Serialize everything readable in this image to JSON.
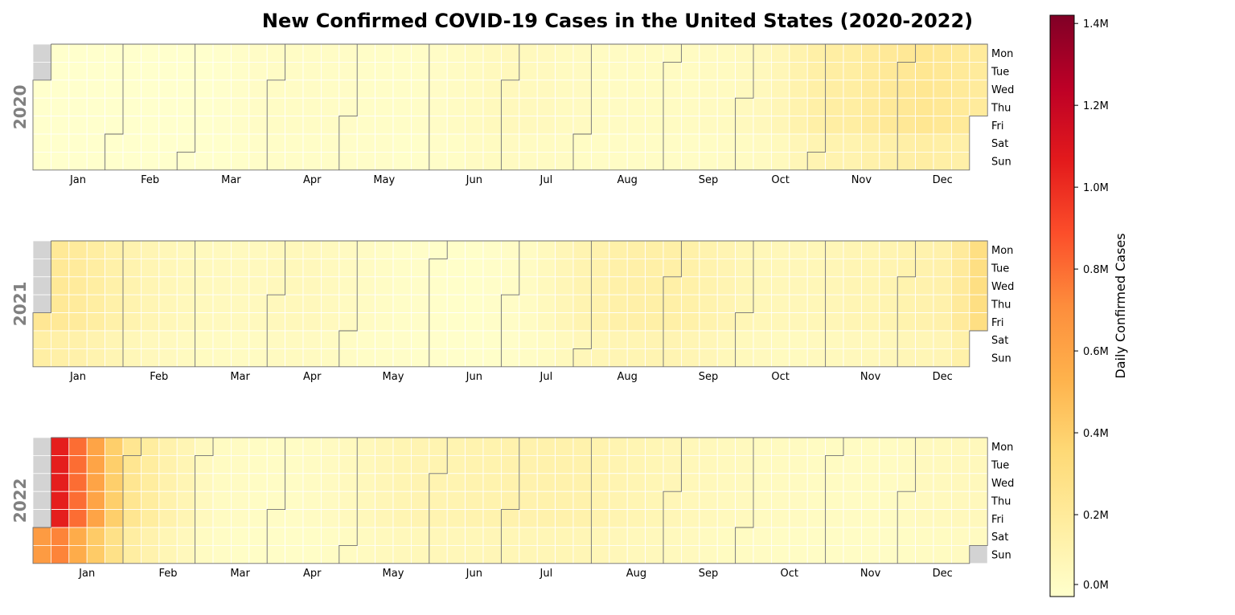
{
  "chart_data": {
    "type": "heatmap",
    "title": "New Confirmed COVID-19 Cases in the United States (2020-2022)",
    "years": [
      "2020",
      "2021",
      "2022"
    ],
    "weekday_labels": [
      "Mon",
      "Tue",
      "Wed",
      "Thu",
      "Fri",
      "Sat",
      "Sun"
    ],
    "month_labels": [
      "Jan",
      "Feb",
      "Mar",
      "Apr",
      "May",
      "Jun",
      "Jul",
      "Aug",
      "Sep",
      "Oct",
      "Nov",
      "Dec"
    ],
    "colorbar": {
      "label": "Daily Confirmed Cases",
      "min": 0,
      "max": 1420000,
      "ticks": [
        0,
        200000,
        400000,
        600000,
        800000,
        1000000,
        1200000,
        1400000
      ],
      "tick_labels": [
        "0.0M",
        "0.2M",
        "0.4M",
        "0.6M",
        "0.8M",
        "1.0M",
        "1.2M",
        "1.4M"
      ],
      "colors": [
        "#ffffcc",
        "#ffeda0",
        "#fed976",
        "#feb24c",
        "#fd8d3c",
        "#fc4e2a",
        "#e31a1c",
        "#bd0026",
        "#800026"
      ]
    },
    "no_data_color": "#d3d3d3",
    "value_unit": "thousands of new cases per day",
    "weekly_values_k": {
      "2020": [
        0,
        0,
        0,
        0,
        0,
        0,
        0,
        0,
        0,
        1,
        5,
        15,
        25,
        30,
        30,
        28,
        28,
        25,
        22,
        22,
        20,
        20,
        25,
        35,
        50,
        62,
        65,
        60,
        55,
        50,
        45,
        40,
        38,
        40,
        40,
        42,
        42,
        45,
        50,
        55,
        65,
        85,
        120,
        150,
        165,
        170,
        195,
        210,
        220,
        235,
        225,
        205,
        195
      ],
      "2021": [
        230,
        215,
        195,
        170,
        140,
        115,
        95,
        80,
        70,
        62,
        55,
        55,
        58,
        65,
        70,
        65,
        55,
        45,
        35,
        28,
        22,
        18,
        13,
        12,
        13,
        18,
        25,
        38,
        60,
        85,
        110,
        125,
        140,
        145,
        150,
        148,
        140,
        120,
        105,
        90,
        80,
        75,
        75,
        80,
        85,
        95,
        100,
        110,
        120,
        125,
        135,
        200,
        300,
        430
      ],
      "2022": [
        920,
        1050,
        800,
        600,
        400,
        240,
        180,
        130,
        95,
        55,
        40,
        35,
        32,
        30,
        30,
        35,
        45,
        55,
        70,
        85,
        100,
        105,
        108,
        110,
        115,
        120,
        125,
        125,
        128,
        130,
        128,
        120,
        110,
        100,
        92,
        85,
        78,
        70,
        62,
        55,
        50,
        48,
        45,
        42,
        40,
        38,
        40,
        42,
        45,
        55,
        62,
        65
      ]
    }
  }
}
